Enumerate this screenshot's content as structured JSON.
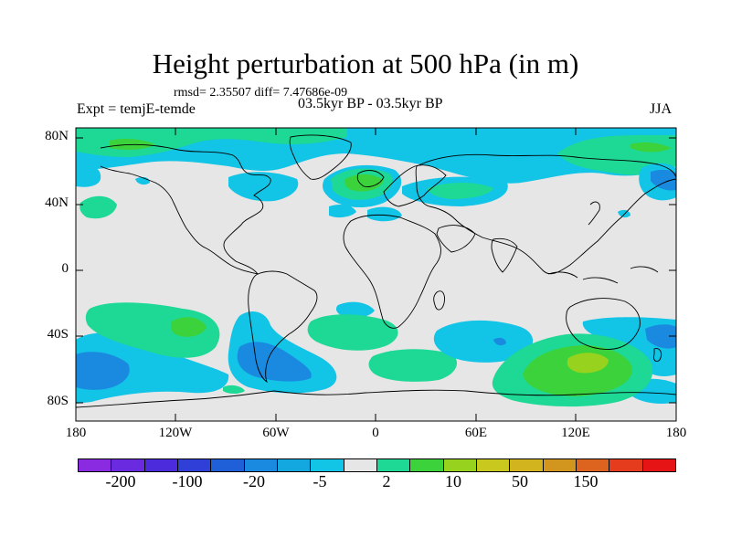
{
  "title": "Height perturbation at 500 hPa (in m)",
  "stats": "rmsd= 2.35507 diff= 7.47686e-09",
  "expt": "Expt = temjE-temde",
  "period": "03.5kyr BP - 03.5kyr BP",
  "season": "JJA",
  "lat_labels": [
    "80N",
    "40N",
    "0",
    "40S",
    "80S"
  ],
  "lon_labels": [
    "180",
    "120W",
    "60W",
    "0",
    "60E",
    "120E",
    "180"
  ],
  "colorbar": {
    "colors": [
      "#8a2be2",
      "#6a2be0",
      "#4b2bdc",
      "#2f3fd8",
      "#1f5fd8",
      "#1a8ae0",
      "#14a8e0",
      "#12c4e6",
      "#e6e6e6",
      "#1ed896",
      "#3cd23c",
      "#96d21e",
      "#c8c81e",
      "#d2b41e",
      "#d2961e",
      "#dc641e",
      "#e63c1e",
      "#e61414"
    ],
    "labels": [
      "-200",
      "-100",
      "-20",
      "-5",
      "2",
      "10",
      "50",
      "150"
    ]
  },
  "map_colors": {
    "ocean_fill": "#e6e6e6",
    "cyan": "#12c4e6",
    "light_blue": "#14a8e0",
    "blue": "#1a8ae0",
    "mint": "#1ed896",
    "green": "#3cd23c",
    "yellow_green": "#96d21e",
    "coast": "#000000"
  }
}
